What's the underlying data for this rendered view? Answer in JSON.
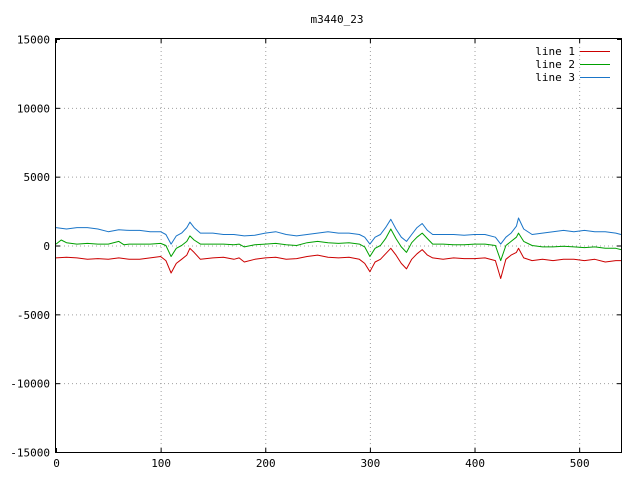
{
  "chart_data": {
    "type": "line",
    "title": "m3440_23",
    "xlabel": "",
    "ylabel": "",
    "xlim": [
      0,
      540
    ],
    "ylim": [
      -15000,
      15000
    ],
    "x_ticks": [
      0,
      100,
      200,
      300,
      400,
      500
    ],
    "y_ticks": [
      -15000,
      -10000,
      -5000,
      0,
      5000,
      10000,
      15000
    ],
    "x_tick_labels": [
      "0",
      "100",
      "200",
      "300",
      "400",
      "500"
    ],
    "y_tick_labels": [
      "-15000",
      "-10000",
      "-5000",
      "0",
      "5000",
      "10000",
      "15000"
    ],
    "grid": true,
    "legend_position": "top-right",
    "series": [
      {
        "name": "line 1",
        "color": "#cc0000",
        "points": [
          [
            0,
            -900
          ],
          [
            10,
            -850
          ],
          [
            20,
            -900
          ],
          [
            30,
            -1000
          ],
          [
            40,
            -950
          ],
          [
            50,
            -1000
          ],
          [
            60,
            -900
          ],
          [
            70,
            -1000
          ],
          [
            80,
            -1000
          ],
          [
            90,
            -900
          ],
          [
            100,
            -800
          ],
          [
            105,
            -1100
          ],
          [
            110,
            -2000
          ],
          [
            115,
            -1300
          ],
          [
            120,
            -1000
          ],
          [
            125,
            -700
          ],
          [
            128,
            -200
          ],
          [
            132,
            -500
          ],
          [
            138,
            -1000
          ],
          [
            150,
            -900
          ],
          [
            160,
            -850
          ],
          [
            170,
            -1000
          ],
          [
            175,
            -900
          ],
          [
            180,
            -1200
          ],
          [
            190,
            -1000
          ],
          [
            200,
            -900
          ],
          [
            210,
            -850
          ],
          [
            220,
            -1000
          ],
          [
            230,
            -950
          ],
          [
            240,
            -800
          ],
          [
            250,
            -700
          ],
          [
            260,
            -850
          ],
          [
            270,
            -900
          ],
          [
            280,
            -850
          ],
          [
            290,
            -1000
          ],
          [
            295,
            -1300
          ],
          [
            300,
            -1900
          ],
          [
            305,
            -1200
          ],
          [
            310,
            -1000
          ],
          [
            315,
            -600
          ],
          [
            320,
            -200
          ],
          [
            325,
            -700
          ],
          [
            330,
            -1300
          ],
          [
            335,
            -1700
          ],
          [
            340,
            -1000
          ],
          [
            345,
            -600
          ],
          [
            350,
            -300
          ],
          [
            355,
            -700
          ],
          [
            360,
            -900
          ],
          [
            370,
            -1000
          ],
          [
            380,
            -900
          ],
          [
            390,
            -950
          ],
          [
            400,
            -950
          ],
          [
            410,
            -900
          ],
          [
            420,
            -1100
          ],
          [
            425,
            -2400
          ],
          [
            430,
            -1000
          ],
          [
            435,
            -700
          ],
          [
            440,
            -500
          ],
          [
            442,
            -200
          ],
          [
            447,
            -900
          ],
          [
            455,
            -1100
          ],
          [
            465,
            -1000
          ],
          [
            475,
            -1100
          ],
          [
            485,
            -1000
          ],
          [
            495,
            -1000
          ],
          [
            505,
            -1100
          ],
          [
            515,
            -1000
          ],
          [
            525,
            -1200
          ],
          [
            535,
            -1100
          ],
          [
            540,
            -1100
          ]
        ]
      },
      {
        "name": "line 2",
        "color": "#00a000",
        "points": [
          [
            0,
            100
          ],
          [
            5,
            400
          ],
          [
            10,
            200
          ],
          [
            20,
            100
          ],
          [
            30,
            150
          ],
          [
            40,
            100
          ],
          [
            50,
            100
          ],
          [
            60,
            300
          ],
          [
            65,
            50
          ],
          [
            70,
            100
          ],
          [
            80,
            100
          ],
          [
            90,
            100
          ],
          [
            100,
            150
          ],
          [
            105,
            0
          ],
          [
            110,
            -800
          ],
          [
            115,
            -200
          ],
          [
            120,
            0
          ],
          [
            125,
            300
          ],
          [
            128,
            700
          ],
          [
            132,
            400
          ],
          [
            138,
            100
          ],
          [
            150,
            100
          ],
          [
            160,
            100
          ],
          [
            170,
            50
          ],
          [
            175,
            100
          ],
          [
            180,
            -100
          ],
          [
            190,
            50
          ],
          [
            200,
            100
          ],
          [
            210,
            150
          ],
          [
            220,
            50
          ],
          [
            230,
            0
          ],
          [
            240,
            200
          ],
          [
            250,
            300
          ],
          [
            260,
            200
          ],
          [
            270,
            150
          ],
          [
            280,
            200
          ],
          [
            290,
            100
          ],
          [
            295,
            -100
          ],
          [
            300,
            -800
          ],
          [
            305,
            -200
          ],
          [
            310,
            0
          ],
          [
            315,
            500
          ],
          [
            320,
            1200
          ],
          [
            325,
            500
          ],
          [
            330,
            -100
          ],
          [
            335,
            -500
          ],
          [
            340,
            200
          ],
          [
            345,
            600
          ],
          [
            350,
            900
          ],
          [
            355,
            500
          ],
          [
            360,
            100
          ],
          [
            370,
            100
          ],
          [
            380,
            50
          ],
          [
            390,
            50
          ],
          [
            400,
            100
          ],
          [
            410,
            100
          ],
          [
            420,
            0
          ],
          [
            425,
            -1100
          ],
          [
            430,
            0
          ],
          [
            435,
            300
          ],
          [
            440,
            600
          ],
          [
            442,
            900
          ],
          [
            447,
            300
          ],
          [
            455,
            0
          ],
          [
            465,
            -100
          ],
          [
            475,
            -100
          ],
          [
            485,
            -50
          ],
          [
            495,
            -100
          ],
          [
            505,
            -150
          ],
          [
            515,
            -100
          ],
          [
            525,
            -200
          ],
          [
            535,
            -200
          ],
          [
            540,
            -300
          ]
        ]
      },
      {
        "name": "line 3",
        "color": "#1a75c8",
        "points": [
          [
            0,
            1300
          ],
          [
            10,
            1200
          ],
          [
            20,
            1300
          ],
          [
            30,
            1300
          ],
          [
            40,
            1200
          ],
          [
            50,
            1000
          ],
          [
            60,
            1150
          ],
          [
            70,
            1100
          ],
          [
            80,
            1100
          ],
          [
            90,
            1000
          ],
          [
            100,
            1000
          ],
          [
            105,
            800
          ],
          [
            110,
            100
          ],
          [
            115,
            700
          ],
          [
            120,
            900
          ],
          [
            125,
            1300
          ],
          [
            128,
            1700
          ],
          [
            132,
            1300
          ],
          [
            138,
            900
          ],
          [
            150,
            900
          ],
          [
            160,
            800
          ],
          [
            170,
            800
          ],
          [
            180,
            700
          ],
          [
            190,
            750
          ],
          [
            200,
            900
          ],
          [
            210,
            1000
          ],
          [
            220,
            800
          ],
          [
            230,
            700
          ],
          [
            240,
            800
          ],
          [
            250,
            900
          ],
          [
            260,
            1000
          ],
          [
            270,
            900
          ],
          [
            280,
            900
          ],
          [
            290,
            800
          ],
          [
            295,
            600
          ],
          [
            300,
            100
          ],
          [
            305,
            600
          ],
          [
            310,
            800
          ],
          [
            315,
            1300
          ],
          [
            320,
            1900
          ],
          [
            325,
            1200
          ],
          [
            330,
            600
          ],
          [
            335,
            300
          ],
          [
            340,
            800
          ],
          [
            345,
            1300
          ],
          [
            350,
            1600
          ],
          [
            355,
            1100
          ],
          [
            360,
            800
          ],
          [
            370,
            800
          ],
          [
            380,
            800
          ],
          [
            390,
            750
          ],
          [
            400,
            800
          ],
          [
            410,
            800
          ],
          [
            420,
            600
          ],
          [
            425,
            100
          ],
          [
            430,
            600
          ],
          [
            435,
            900
          ],
          [
            440,
            1400
          ],
          [
            442,
            2000
          ],
          [
            447,
            1200
          ],
          [
            455,
            800
          ],
          [
            465,
            900
          ],
          [
            475,
            1000
          ],
          [
            485,
            1100
          ],
          [
            495,
            1000
          ],
          [
            505,
            1100
          ],
          [
            515,
            1000
          ],
          [
            525,
            1000
          ],
          [
            535,
            900
          ],
          [
            540,
            800
          ]
        ]
      }
    ]
  }
}
